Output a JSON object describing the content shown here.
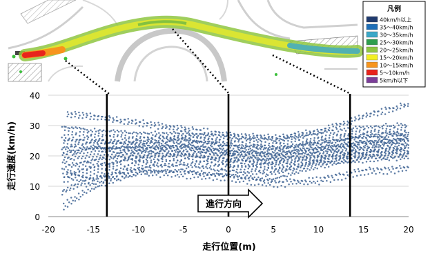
{
  "legend": {
    "title": "凡例",
    "items": [
      {
        "label": "40km/h以上",
        "color": "#1f3a6e"
      },
      {
        "label": "35～40km/h",
        "color": "#1e6fb8"
      },
      {
        "label": "30～35km/h",
        "color": "#3aa8c8"
      },
      {
        "label": "25～30km/h",
        "color": "#2e9e4e"
      },
      {
        "label": "20～25km/h",
        "color": "#8ec641"
      },
      {
        "label": "15～20km/h",
        "color": "#f3ef22"
      },
      {
        "label": "10～15km/h",
        "color": "#f7941d"
      },
      {
        "label": "5～10km/h",
        "color": "#e8231c"
      },
      {
        "label": "5km/h以下",
        "color": "#7a3d98"
      }
    ]
  },
  "direction_label": "進行方向",
  "chart_data": {
    "type": "scatter",
    "xlabel": "走行位置(m)",
    "ylabel": "走行速度(km/h)",
    "xlim": [
      -20,
      20
    ],
    "ylim": [
      0,
      40
    ],
    "xticks": [
      "-20",
      "-15",
      "-10",
      "-5",
      "0",
      "5",
      "10",
      "15",
      "20"
    ],
    "yticks": [
      "0",
      "10",
      "20",
      "30",
      "40"
    ],
    "grid": "horizontal",
    "point_color": "#3f6494",
    "section_lines_x": [
      -13.5,
      0,
      13.5
    ],
    "bands": [
      {
        "x": [
          -18.5,
          -15,
          -10,
          -5,
          0,
          5,
          10,
          15,
          20
        ],
        "y": [
          3,
          10,
          15,
          16,
          14,
          13,
          17,
          19,
          20
        ]
      },
      {
        "x": [
          -18.5,
          -15,
          -10,
          -5,
          0,
          5,
          10,
          15,
          20
        ],
        "y": [
          8,
          13,
          17,
          18,
          16,
          15,
          18,
          20,
          21
        ]
      },
      {
        "x": [
          -18.5,
          -15,
          -10,
          -5,
          0,
          5,
          10,
          15,
          20
        ],
        "y": [
          12,
          16,
          19,
          20,
          18,
          17,
          19,
          21,
          22
        ]
      },
      {
        "x": [
          -18.5,
          -15,
          -10,
          -5,
          0,
          5,
          10,
          15,
          20
        ],
        "y": [
          15,
          18,
          20,
          21,
          19,
          18,
          20,
          22,
          23
        ]
      },
      {
        "x": [
          -18.5,
          -15,
          -10,
          -5,
          0,
          5,
          10,
          15,
          20
        ],
        "y": [
          18,
          20,
          21,
          22,
          20,
          19,
          21,
          23,
          24
        ]
      },
      {
        "x": [
          -18.5,
          -15,
          -10,
          -5,
          0,
          5,
          10,
          15,
          20
        ],
        "y": [
          20,
          22,
          22,
          23,
          21,
          20,
          22,
          24,
          25
        ]
      },
      {
        "x": [
          -18.5,
          -15,
          -10,
          -5,
          0,
          5,
          10,
          15,
          20
        ],
        "y": [
          22,
          23,
          23,
          24,
          22,
          21,
          23,
          25,
          26
        ]
      },
      {
        "x": [
          -18.5,
          -15,
          -10,
          -5,
          0,
          5,
          10,
          15,
          20
        ],
        "y": [
          24,
          24,
          24,
          25,
          23,
          22,
          24,
          26,
          27
        ]
      },
      {
        "x": [
          -18.5,
          -15,
          -10,
          -5,
          0,
          5,
          10,
          15,
          20
        ],
        "y": [
          26,
          26,
          25,
          26,
          24,
          23,
          25,
          27,
          28
        ]
      },
      {
        "x": [
          -18.5,
          -15,
          -10,
          -5,
          0,
          5,
          10,
          15,
          20
        ],
        "y": [
          29,
          28,
          27,
          27,
          26,
          25,
          27,
          29,
          30
        ]
      },
      {
        "x": [
          -18,
          -15,
          -10,
          -5,
          0,
          5,
          10,
          15,
          20
        ],
        "y": [
          34,
          33,
          31,
          29,
          27,
          26,
          28,
          33,
          37
        ]
      },
      {
        "x": [
          -18,
          -15,
          -10,
          -5,
          0,
          5,
          10,
          15,
          20
        ],
        "y": [
          14,
          12,
          15,
          14,
          13,
          11,
          12,
          15,
          16
        ]
      }
    ]
  }
}
